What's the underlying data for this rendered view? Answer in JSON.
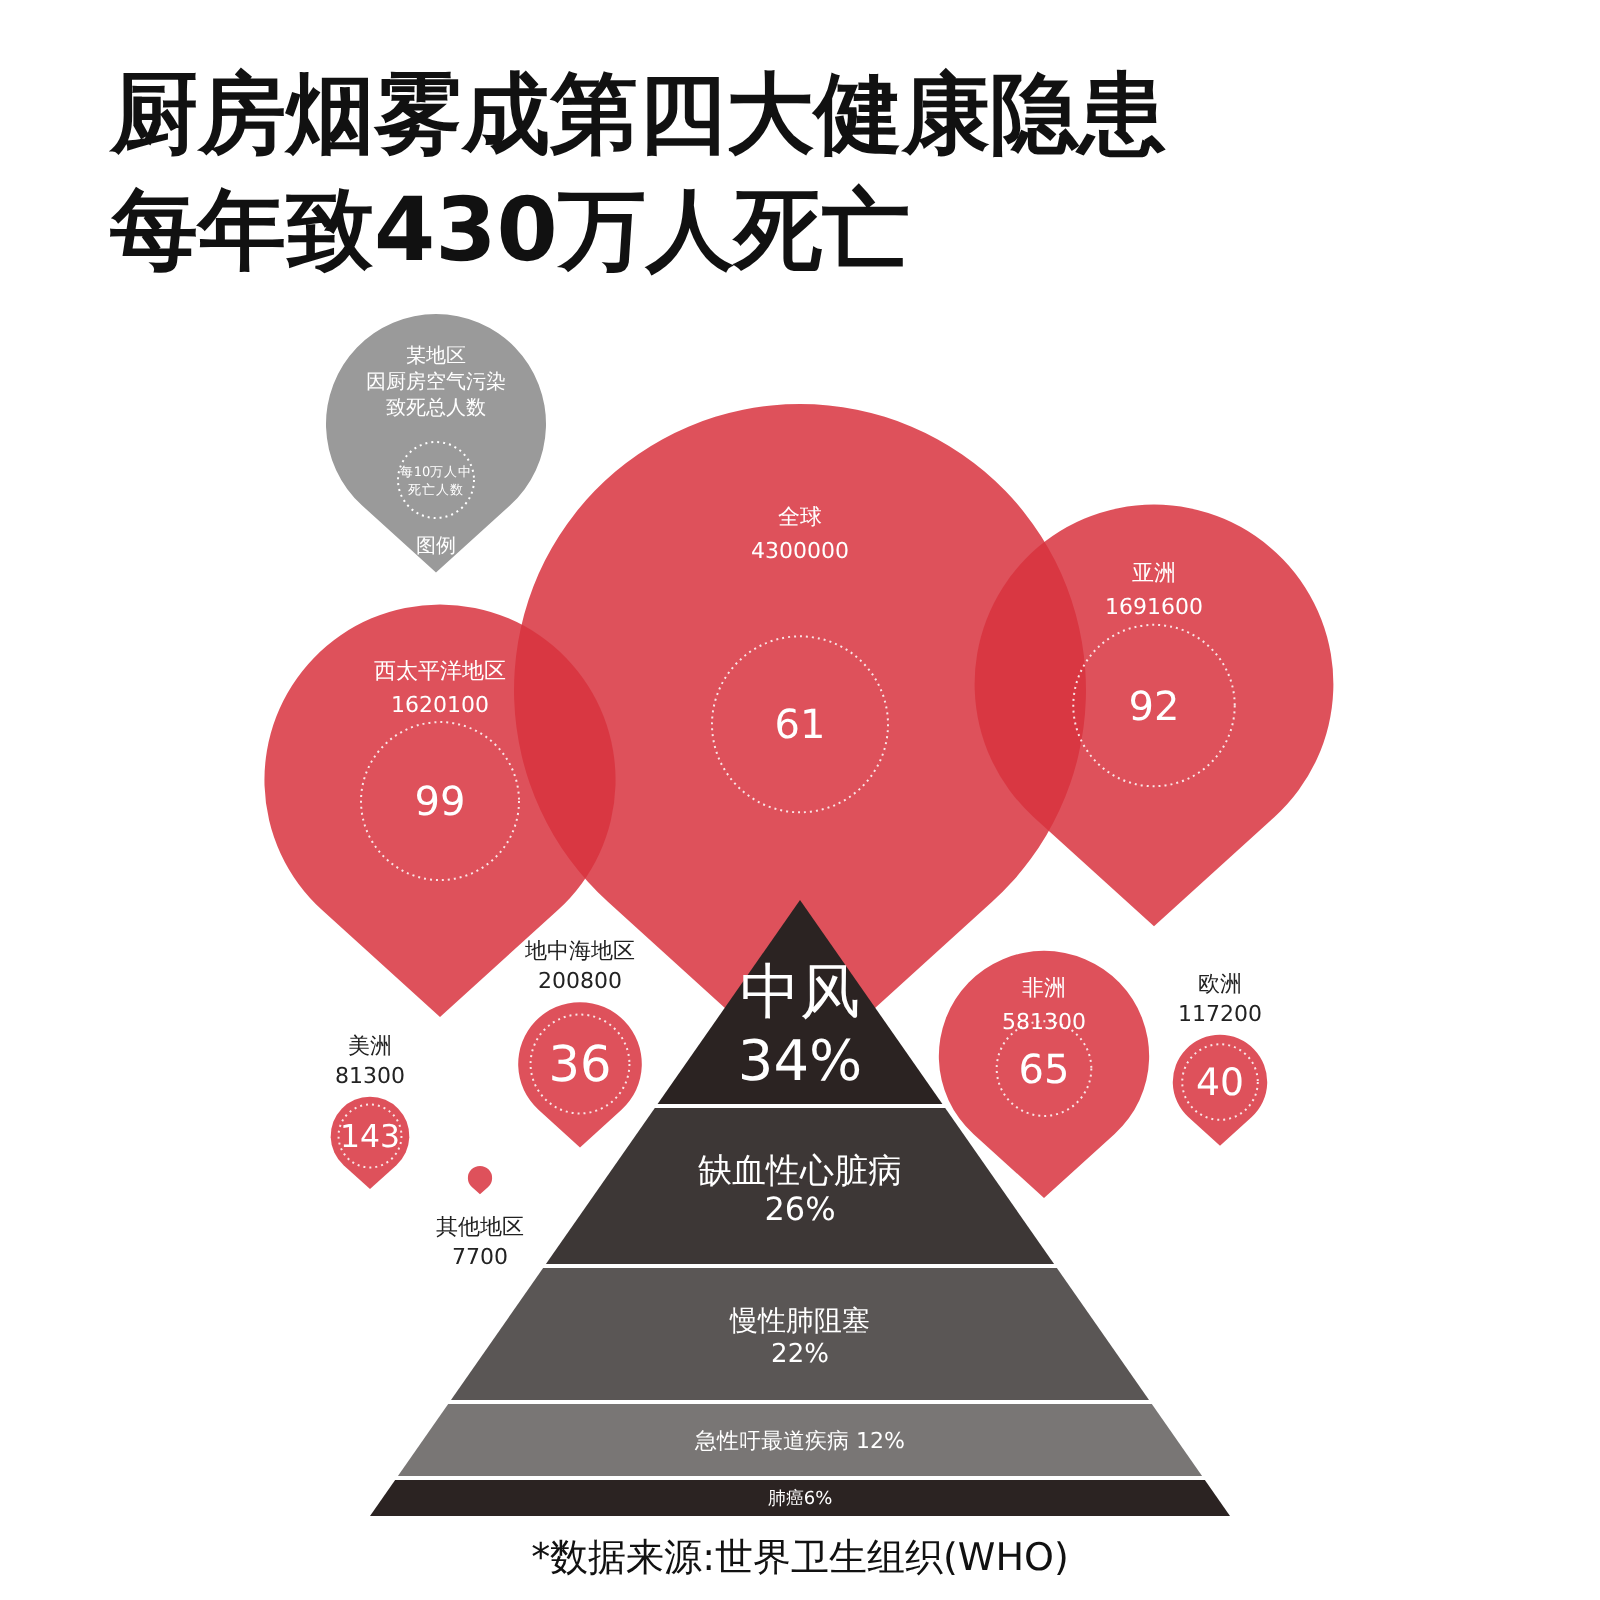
{
  "chart_data": [
    {
      "type": "other",
      "title": "厨房烟雾成第四大健康隐患",
      "subtitle": "每年致430万人死亡",
      "categories": [
        "全球",
        "亚洲",
        "西太平洋地区",
        "地中海地区",
        "非洲",
        "欧洲",
        "美洲",
        "其他地区"
      ],
      "series": [
        {
          "color": "#d8323e",
          "values": [
            4300000,
            1691600,
            1620100,
            200800,
            581300,
            117200,
            81300,
            7700
          ]
        },
        {
          "values": [
            61,
            92,
            99,
            36,
            65,
            40,
            143,
            null
          ]
        }
      ],
      "data_labels": true,
      "annotations": [
        "某地区",
        "因厨房空气污染致死总人数",
        "每10万人中死亡人数",
        "图例"
      ]
    },
    {
      "type": "other",
      "categories": [
        "中风",
        "缺血性心脏病",
        "慢性肺阻塞",
        "急性吁最道疾病",
        "肺癌"
      ],
      "values": [
        34,
        26,
        22,
        12,
        6
      ],
      "value_labels": [
        "34%",
        "26%",
        "22%",
        "12%",
        "6%"
      ],
      "colors": [
        "#2b2322",
        "#3d3736",
        "#5a5655",
        "#797675",
        "#2b2322"
      ],
      "annotations": [
        "*数据来源:世界卫生组织(WHO)"
      ]
    }
  ]
}
